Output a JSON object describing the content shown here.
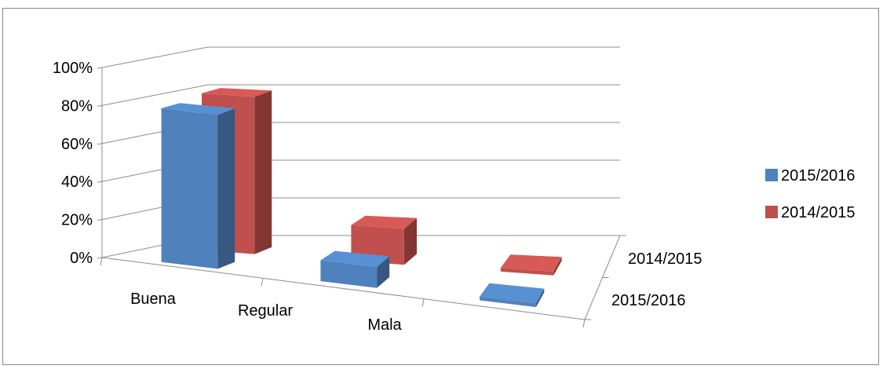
{
  "chart_data": {
    "type": "bar",
    "subtype": "3d-clustered-depth",
    "categories": [
      "Buena",
      "Regular",
      "Mala"
    ],
    "depth_categories": [
      "2014/2015",
      "2015/2016"
    ],
    "series": [
      {
        "name": "2015/2016",
        "values": [
          81,
          11,
          2
        ],
        "color": "#4F81BD"
      },
      {
        "name": "2014/2015",
        "values": [
          83,
          19,
          2
        ],
        "color": "#C0504D"
      }
    ],
    "y_tick_labels": [
      "0%",
      "20%",
      "40%",
      "60%",
      "80%",
      "100%"
    ],
    "ylim": [
      0,
      100
    ],
    "y_unit": "%",
    "grid": true,
    "legend_position": "right",
    "title": "",
    "xlabel": "",
    "ylabel": ""
  }
}
